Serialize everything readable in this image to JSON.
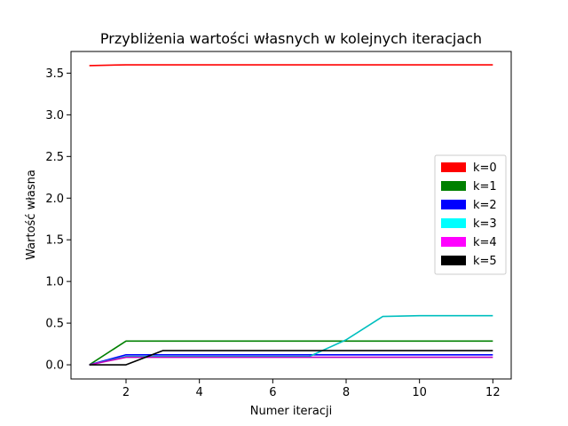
{
  "chart_data": {
    "type": "line",
    "title": "Przybliżenia wartości własnych w kolejnych iteracjach",
    "xlabel": "Numer iteracji",
    "ylabel": "Wartość własna",
    "x": [
      1,
      2,
      3,
      4,
      5,
      6,
      7,
      8,
      9,
      10,
      11,
      12
    ],
    "xlim": [
      0.5,
      12.5
    ],
    "ylim": [
      -0.17,
      3.76
    ],
    "xticks": [
      "2",
      "4",
      "6",
      "8",
      "10",
      "12"
    ],
    "yticks": [
      "0.0",
      "0.5",
      "1.0",
      "1.5",
      "2.0",
      "2.5",
      "3.0",
      "3.5"
    ],
    "grid": false,
    "legend_position": "center-right",
    "series": [
      {
        "name": "k=0",
        "color": "#ff0000",
        "values": [
          3.59,
          3.6,
          3.6,
          3.6,
          3.6,
          3.6,
          3.6,
          3.6,
          3.6,
          3.6,
          3.6,
          3.6
        ]
      },
      {
        "name": "k=1",
        "color": "#008000",
        "values": [
          0.0,
          0.285,
          0.285,
          0.285,
          0.285,
          0.285,
          0.285,
          0.285,
          0.285,
          0.285,
          0.285,
          0.285
        ]
      },
      {
        "name": "k=2",
        "color": "#0000ff",
        "values": [
          0.0,
          0.12,
          0.12,
          0.12,
          0.12,
          0.12,
          0.12,
          0.12,
          0.12,
          0.12,
          0.12,
          0.12
        ]
      },
      {
        "name": "k=3",
        "color": "#00bfbf",
        "legend_color": "#00ffff",
        "values": [
          0.0,
          0.1,
          0.1,
          0.1,
          0.1,
          0.1,
          0.1,
          0.3,
          0.58,
          0.59,
          0.59,
          0.59
        ]
      },
      {
        "name": "k=4",
        "color": "#bf00bf",
        "legend_color": "#ff00ff",
        "values": [
          0.0,
          0.09,
          0.09,
          0.09,
          0.09,
          0.09,
          0.09,
          0.09,
          0.09,
          0.09,
          0.09,
          0.09
        ]
      },
      {
        "name": "k=5",
        "color": "#000000",
        "values": [
          0.0,
          0.0,
          0.17,
          0.17,
          0.17,
          0.17,
          0.17,
          0.17,
          0.17,
          0.17,
          0.17,
          0.17
        ]
      }
    ]
  }
}
